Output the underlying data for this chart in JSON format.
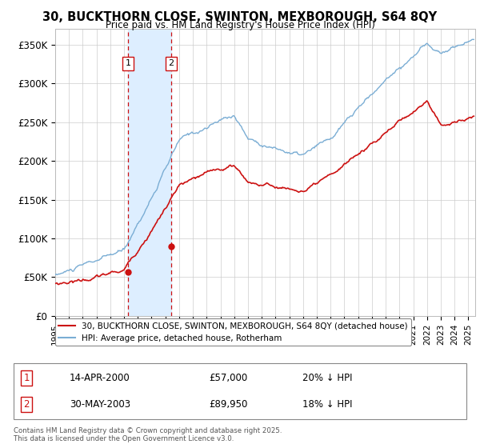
{
  "title": "30, BUCKTHORN CLOSE, SWINTON, MEXBOROUGH, S64 8QY",
  "subtitle": "Price paid vs. HM Land Registry's House Price Index (HPI)",
  "ylabel_ticks": [
    "£0",
    "£50K",
    "£100K",
    "£150K",
    "£200K",
    "£250K",
    "£300K",
    "£350K"
  ],
  "ytick_values": [
    0,
    50000,
    100000,
    150000,
    200000,
    250000,
    300000,
    350000
  ],
  "ylim": [
    0,
    370000
  ],
  "xlim_start": 1995.0,
  "xlim_end": 2025.5,
  "transaction1": {
    "date_year": 2000.29,
    "price": 57000,
    "label": "1"
  },
  "transaction2": {
    "date_year": 2003.41,
    "price": 89950,
    "label": "2"
  },
  "hpi_color": "#7aadd4",
  "price_color": "#cc1111",
  "shaded_color": "#ddeeff",
  "vline_color": "#cc1111",
  "legend_entries": [
    "30, BUCKTHORN CLOSE, SWINTON, MEXBOROUGH, S64 8QY (detached house)",
    "HPI: Average price, detached house, Rotherham"
  ],
  "table_rows": [
    [
      "1",
      "14-APR-2000",
      "£57,000",
      "20% ↓ HPI"
    ],
    [
      "2",
      "30-MAY-2003",
      "£89,950",
      "18% ↓ HPI"
    ]
  ],
  "footnote": "Contains HM Land Registry data © Crown copyright and database right 2025.\nThis data is licensed under the Open Government Licence v3.0.",
  "background_color": "#ffffff",
  "num_points": 500,
  "hpi_seed": 10,
  "pp_seed": 20
}
